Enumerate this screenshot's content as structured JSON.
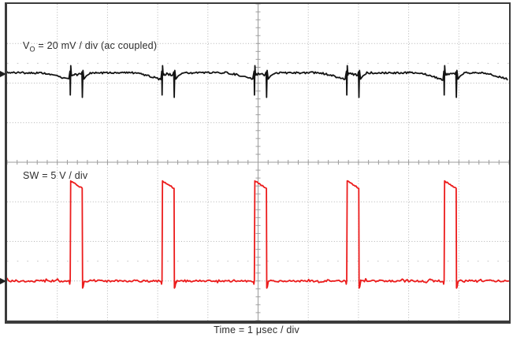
{
  "labels": {
    "vo": {
      "prefix": "V",
      "sub": "O",
      "rest": " = 20 mV / div (ac coupled)"
    },
    "sw": "SW = 5 V / div",
    "time": "Time = 1 μsec / div"
  },
  "plot": {
    "border_color": "#3b3b3b",
    "background": "#ffffff",
    "grid_dot_color": "#b2b2b2",
    "axis_color": "#9c9c9c",
    "minor_dot_color": "#c4c4c4"
  },
  "chart_data": {
    "type": "line",
    "title": "",
    "xlabel": "Time = 1 μsec / div",
    "x_unit_per_div": "1 μsec",
    "x_divisions": 10,
    "y_divisions": 8,
    "grid": {
      "style": "dotted",
      "center_axes_with_minor_ticks": true,
      "minor_ticks_per_div": 5,
      "minor_dot_rows_div": [
        1.5,
        6.5
      ]
    },
    "markers": {
      "vo_arrow_div": 1.77,
      "sw_arrow_div": 7.0
    },
    "series": [
      {
        "name": "VO",
        "legend": "VO = 20 mV / div (ac coupled)",
        "color": "#141414",
        "scale_per_div": "20 mV",
        "coupling": "ac coupled",
        "flat_level_div": 1.74,
        "sag_level_div": 1.92,
        "on_level_div": 1.78,
        "spike_low_div": 2.3,
        "spike_high_div": 1.56,
        "transient_times_div": [
          1.26,
          3.09,
          4.93,
          6.77,
          8.71
        ]
      },
      {
        "name": "SW",
        "legend": "SW = 5 V / div",
        "color": "#ec1c1c",
        "scale_per_div": "5 V",
        "low_level_div": 7.0,
        "high_level_div": 4.52,
        "top_droop_div": 0.14,
        "undershoot_div": 7.18,
        "pulse_rise_times_div": [
          1.26,
          3.09,
          4.93,
          6.77,
          8.71
        ],
        "pulse_width_div": 0.24,
        "pulse_amplitude_div": 2.48
      }
    ]
  }
}
